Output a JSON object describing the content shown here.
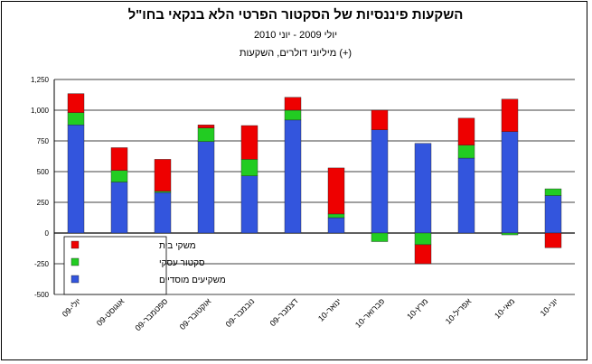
{
  "chart_data": {
    "type": "bar",
    "stacked": true,
    "title": "השקעות פיננסיות של הסקטור הפרטי הלא בנקאי בחו\"ל",
    "subtitle": "יולי 2009 - יוני 2010",
    "unit_label": "מיליוני דולרים, השקעות (+)",
    "categories": [
      "יולי-09",
      "אוגוסט-09",
      "ספטמבר-09",
      "אוקטובר-09",
      "נובמבר-09",
      "דצמבר-09",
      "ינואר-10",
      "פברואר-10",
      "מרץ-10",
      "אפריל-10",
      "מאי-10",
      "יוני-10"
    ],
    "series": [
      {
        "name": "משקיעים מוסדיים",
        "color": "#3355dd",
        "values": [
          880,
          415,
          330,
          745,
          465,
          920,
          125,
          840,
          730,
          610,
          825,
          305
        ]
      },
      {
        "name": "סקטור עסקי",
        "color": "#22cc22",
        "values": [
          100,
          95,
          10,
          110,
          135,
          80,
          30,
          -70,
          -95,
          105,
          -15,
          55
        ]
      },
      {
        "name": "משקי בית",
        "color": "#ee0000",
        "values": [
          155,
          185,
          260,
          25,
          275,
          105,
          375,
          160,
          -155,
          220,
          265,
          -120
        ]
      }
    ],
    "ylim": [
      -500,
      1250
    ],
    "yticks": [
      "1,250",
      "1,000",
      "750",
      "500",
      "250",
      "0",
      "-250",
      "-500"
    ],
    "grid": true,
    "legend_position": "bottom-left"
  }
}
